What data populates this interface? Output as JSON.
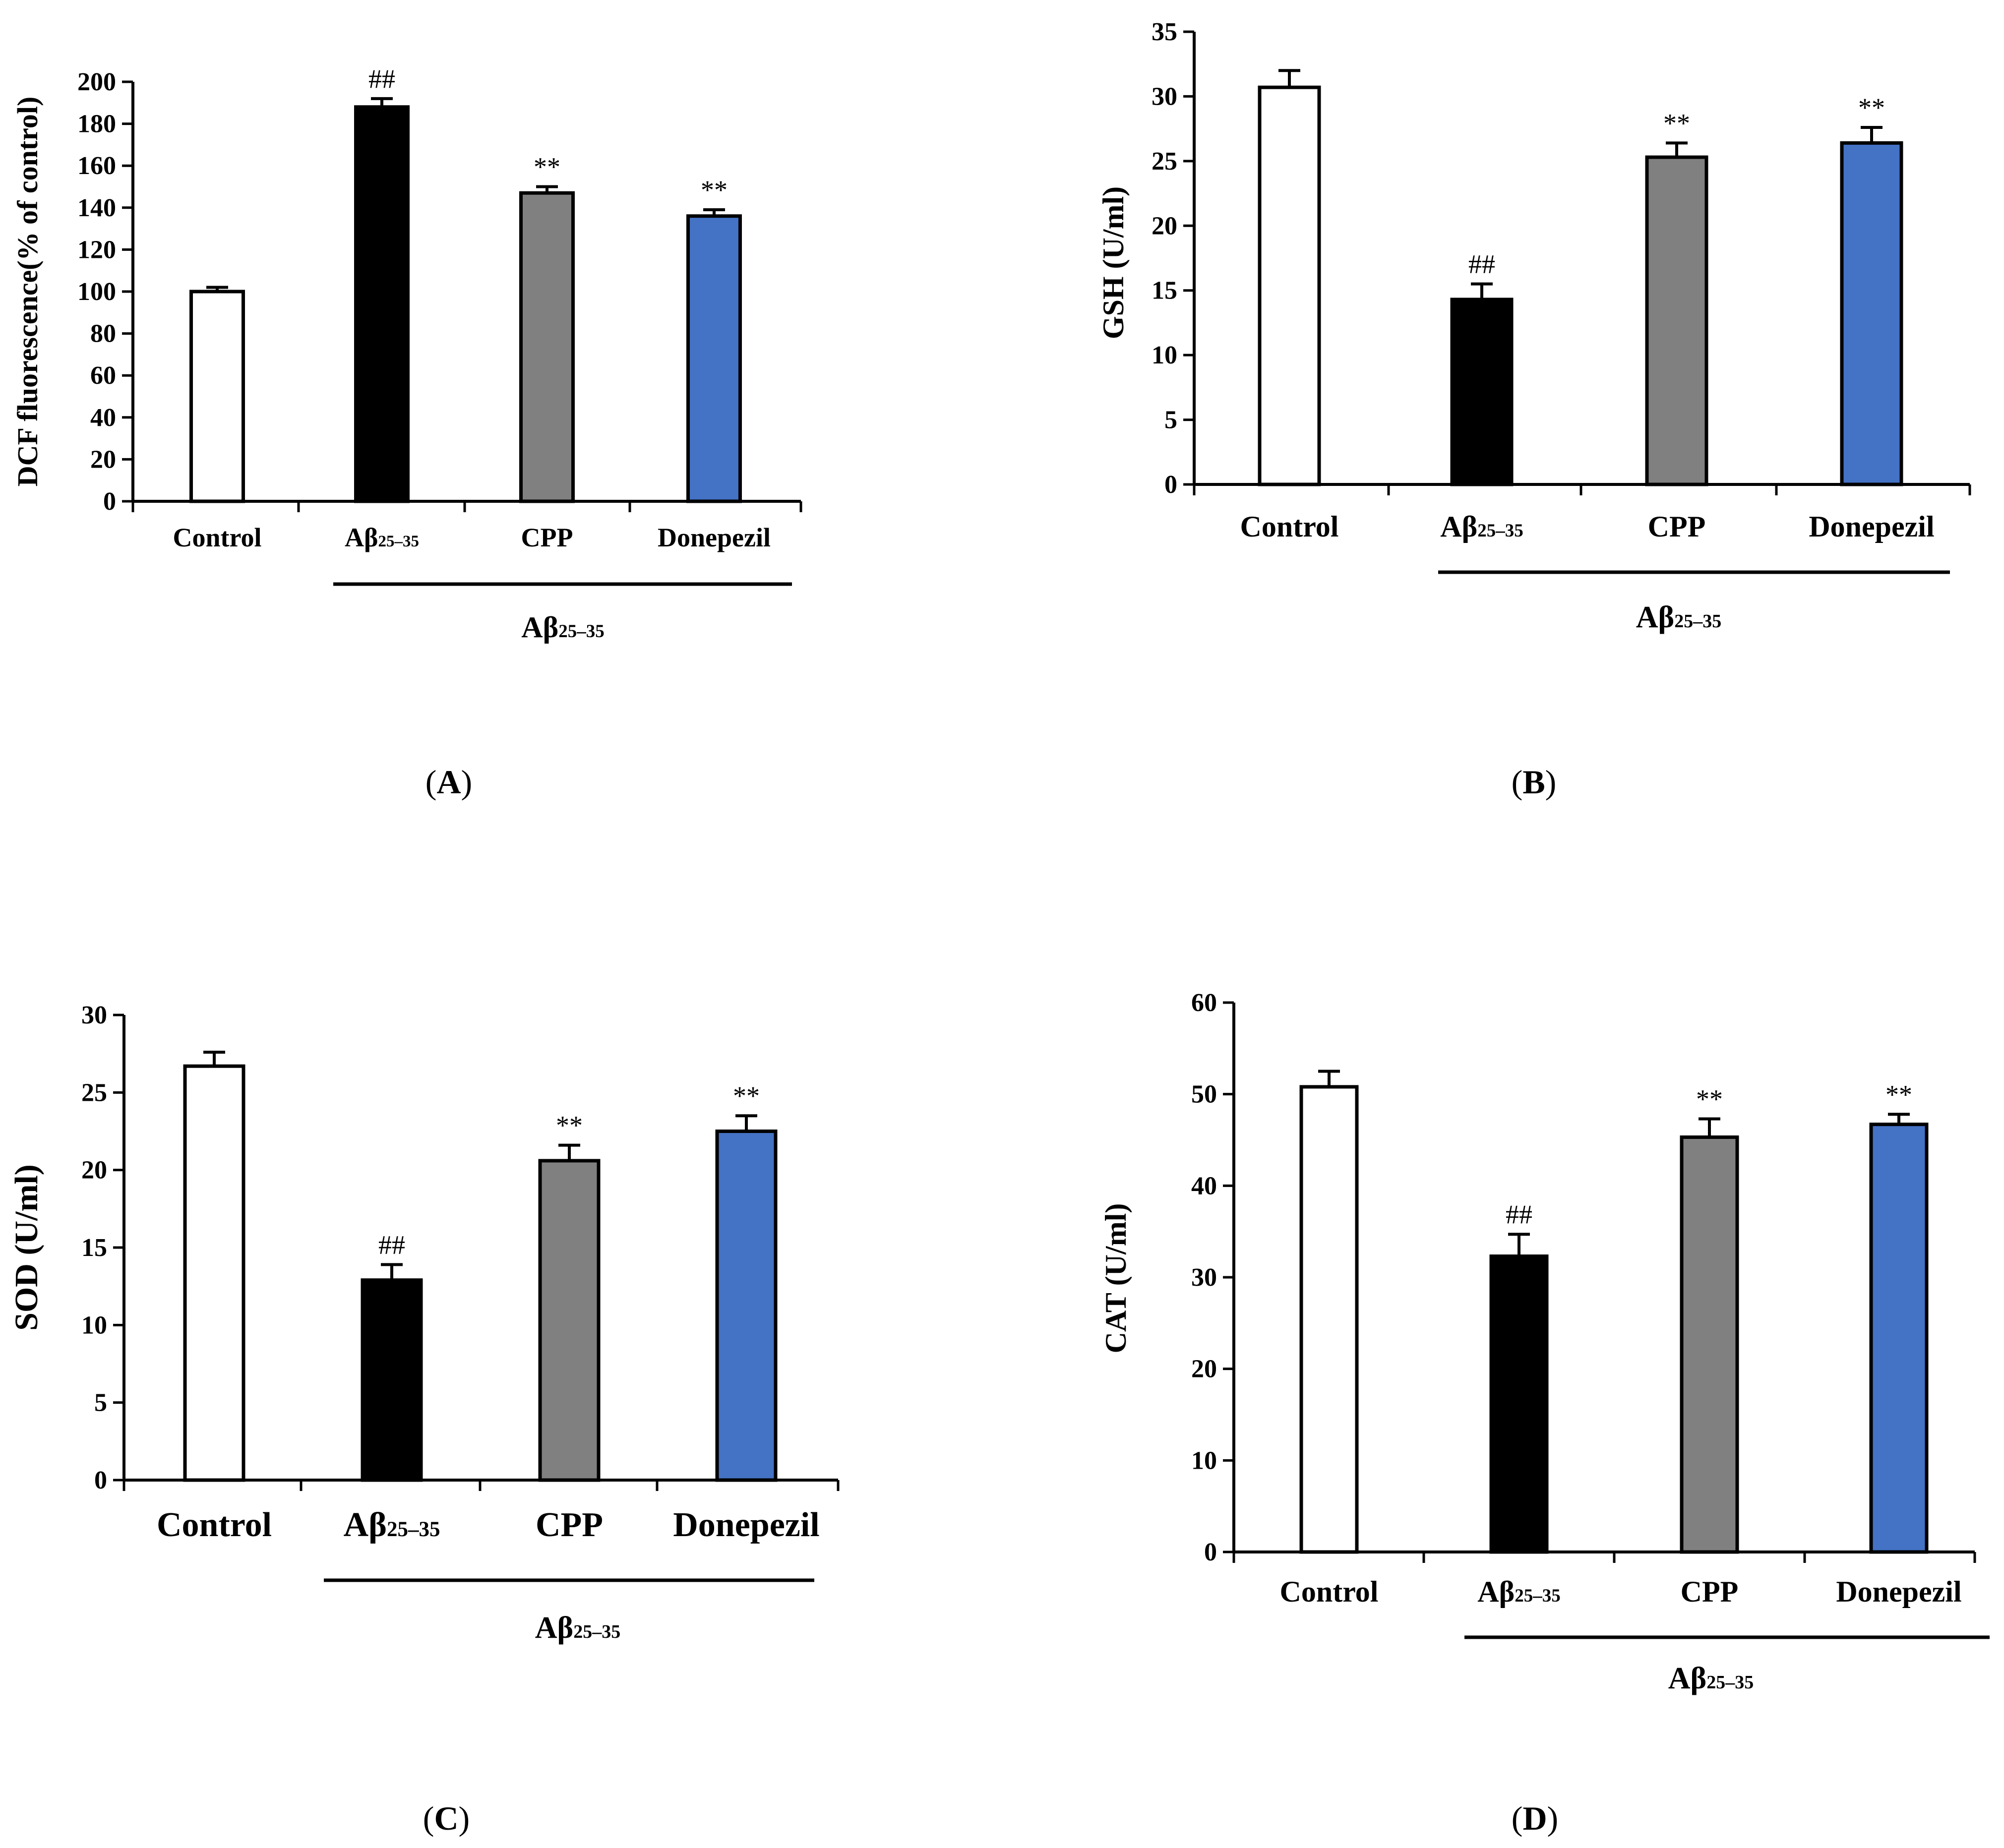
{
  "chart_data": [
    {
      "type": "bar",
      "panel_label": "A",
      "categories": [
        "Control",
        "Aβ25–35",
        "CPP",
        "Donepezil"
      ],
      "values": [
        100,
        188,
        147,
        136
      ],
      "errors": [
        2,
        4,
        3,
        3
      ],
      "significance": [
        "",
        "##",
        "**",
        "**"
      ],
      "colors": [
        "#ffffff",
        "#000000",
        "#808080",
        "#4472c4"
      ],
      "ylabel": "DCF fluorescence(% of control)",
      "ylim": [
        0,
        200
      ],
      "yticks": [
        0,
        20,
        40,
        60,
        80,
        100,
        120,
        140,
        160,
        180,
        200
      ],
      "group_label": "Aβ25–35",
      "title": ""
    },
    {
      "type": "bar",
      "panel_label": "B",
      "categories": [
        "Control",
        "Aβ25–35",
        "CPP",
        "Donepezil"
      ],
      "values": [
        30.7,
        14.3,
        25.3,
        26.4
      ],
      "errors": [
        1.3,
        1.2,
        1.1,
        1.2
      ],
      "significance": [
        "",
        "##",
        "**",
        "**"
      ],
      "colors": [
        "#ffffff",
        "#000000",
        "#808080",
        "#4472c4"
      ],
      "ylabel": "GSH (U/ml)",
      "ylim": [
        0,
        35
      ],
      "yticks": [
        0,
        5,
        10,
        15,
        20,
        25,
        30,
        35
      ],
      "group_label": "Aβ25–35",
      "title": ""
    },
    {
      "type": "bar",
      "panel_label": "C",
      "categories": [
        "Control",
        "Aβ25–35",
        "CPP",
        "Donepezil"
      ],
      "values": [
        26.7,
        12.9,
        20.6,
        22.5
      ],
      "errors": [
        0.9,
        1.0,
        1.0,
        1.0
      ],
      "significance": [
        "",
        "##",
        "**",
        "**"
      ],
      "colors": [
        "#ffffff",
        "#000000",
        "#808080",
        "#4472c4"
      ],
      "ylabel": "SOD (U/ml)",
      "ylim": [
        0,
        30
      ],
      "yticks": [
        0,
        5,
        10,
        15,
        20,
        25,
        30
      ],
      "group_label": "Aβ25–35",
      "title": ""
    },
    {
      "type": "bar",
      "panel_label": "D",
      "categories": [
        "Control",
        "Aβ25–35",
        "CPP",
        "Donepezil"
      ],
      "values": [
        50.8,
        32.3,
        45.3,
        46.7
      ],
      "errors": [
        1.7,
        2.4,
        2.0,
        1.1
      ],
      "significance": [
        "",
        "##",
        "**",
        "**"
      ],
      "colors": [
        "#ffffff",
        "#000000",
        "#808080",
        "#4472c4"
      ],
      "ylabel": "CAT (U/ml)",
      "ylim": [
        0,
        60
      ],
      "yticks": [
        0,
        10,
        20,
        30,
        40,
        50,
        60
      ],
      "group_label": "Aβ25–35",
      "title": ""
    }
  ]
}
